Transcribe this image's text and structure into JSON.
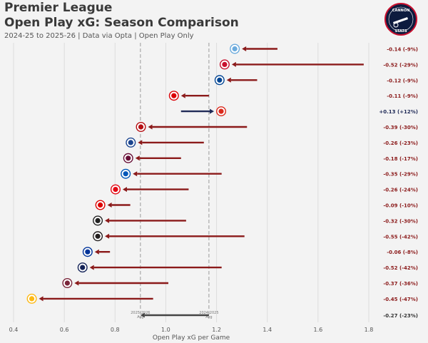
{
  "header": {
    "title_line1": "Premier League",
    "title_line2": "Open Play xG: Season Comparison",
    "subtitle": "2024-25 to 2025-26 | Data via Opta | Open Play Only"
  },
  "logo": {
    "top_text": "CANNON",
    "bottom_text": "STATS"
  },
  "colors": {
    "decrease": "#8b1a1a",
    "increase": "#1f2a57",
    "avg": "#444444",
    "grid": "#dddddd"
  },
  "chart_data": {
    "type": "arrow-dumbbell",
    "title": "Open Play xG: Season Comparison",
    "xlabel": "Open Play xG per Game",
    "xlim": [
      0.4,
      1.8
    ],
    "xticks": [
      0.4,
      0.6,
      0.8,
      1.0,
      1.2,
      1.4,
      1.6,
      1.8
    ],
    "tick_labels": [
      "0.4",
      "0.6",
      "0.8",
      "1.0",
      "1.2",
      "1.4",
      "1.6",
      "1.8"
    ],
    "averages": [
      {
        "label": "2025-2026 Avg",
        "value": 0.9
      },
      {
        "label": "2024-2025 Avg",
        "value": 1.17
      }
    ],
    "teams": [
      {
        "icon": "manchester-city-crest-icon",
        "color": "#6cabdd",
        "from": 1.44,
        "to": 1.3,
        "label": "-0.14 (-9%)"
      },
      {
        "icon": "liverpool-crest-icon",
        "color": "#c8102e",
        "from": 1.78,
        "to": 1.26,
        "label": "-0.52 (-29%)"
      },
      {
        "icon": "chelsea-crest-icon",
        "color": "#034694",
        "from": 1.36,
        "to": 1.24,
        "label": "-0.12 (-9%)"
      },
      {
        "icon": "arsenal-crest-icon",
        "color": "#db0007",
        "from": 1.17,
        "to": 1.06,
        "label": "-0.11 (-9%)"
      },
      {
        "icon": "manchester-united-crest-icon",
        "color": "#da291c",
        "from": 1.06,
        "to": 1.19,
        "label": "+0.13 (+12%)"
      },
      {
        "icon": "bournemouth-crest-icon",
        "color": "#b50e12",
        "from": 1.32,
        "to": 0.93,
        "label": "-0.39 (-30%)"
      },
      {
        "icon": "crystal-palace-crest-icon",
        "color": "#1b458f",
        "from": 1.15,
        "to": 0.89,
        "label": "-0.26 (-23%)"
      },
      {
        "icon": "aston-villa-crest-icon",
        "color": "#670e36",
        "from": 1.06,
        "to": 0.88,
        "label": "-0.18 (-17%)"
      },
      {
        "icon": "brighton-crest-icon",
        "color": "#0057b8",
        "from": 1.22,
        "to": 0.87,
        "label": "-0.35 (-29%)"
      },
      {
        "icon": "brentford-crest-icon",
        "color": "#e30613",
        "from": 1.09,
        "to": 0.83,
        "label": "-0.26 (-24%)"
      },
      {
        "icon": "nottingham-forest-crest-icon",
        "color": "#dd0000",
        "from": 0.86,
        "to": 0.77,
        "label": "-0.09 (-10%)"
      },
      {
        "icon": "fulham-crest-icon",
        "color": "#222222",
        "from": 1.08,
        "to": 0.76,
        "label": "-0.32 (-30%)"
      },
      {
        "icon": "newcastle-crest-icon",
        "color": "#241f20",
        "from": 1.31,
        "to": 0.76,
        "label": "-0.55 (-42%)"
      },
      {
        "icon": "everton-crest-icon",
        "color": "#003399",
        "from": 0.78,
        "to": 0.72,
        "label": "-0.06 (-8%)"
      },
      {
        "icon": "tottenham-crest-icon",
        "color": "#132257",
        "from": 1.22,
        "to": 0.7,
        "label": "-0.52 (-42%)"
      },
      {
        "icon": "west-ham-crest-icon",
        "color": "#7a263a",
        "from": 1.01,
        "to": 0.64,
        "label": "-0.37 (-36%)"
      },
      {
        "icon": "wolves-crest-icon",
        "color": "#fdb913",
        "from": 0.95,
        "to": 0.5,
        "label": "-0.45 (-47%)"
      }
    ],
    "average_summary": {
      "from": 1.17,
      "to": 0.9,
      "label": "-0.27 (-23%)"
    }
  }
}
